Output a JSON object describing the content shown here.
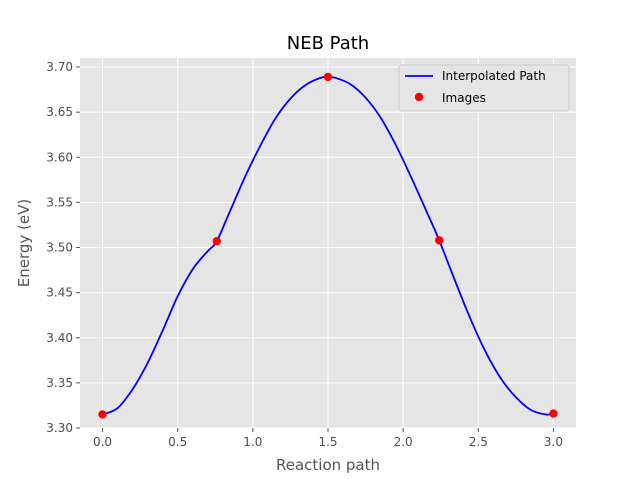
{
  "chart_data": {
    "type": "line",
    "title": "NEB Path",
    "xlabel": "Reaction path",
    "ylabel": "Energy (eV)",
    "xlim": [
      -0.15,
      3.15
    ],
    "ylim": [
      3.3,
      3.71
    ],
    "xticks": [
      0.0,
      0.5,
      1.0,
      1.5,
      2.0,
      2.5,
      3.0
    ],
    "xtick_labels": [
      "0.0",
      "0.5",
      "1.0",
      "1.5",
      "2.0",
      "2.5",
      "3.0"
    ],
    "yticks": [
      3.3,
      3.35,
      3.4,
      3.45,
      3.5,
      3.55,
      3.6,
      3.65,
      3.7
    ],
    "ytick_labels": [
      "3.30",
      "3.35",
      "3.40",
      "3.45",
      "3.50",
      "3.55",
      "3.60",
      "3.65",
      "3.70"
    ],
    "grid": true,
    "legend_position": "top-right",
    "series": [
      {
        "name": "Interpolated Path",
        "kind": "line",
        "color": "#0000ff",
        "x": [
          0.0,
          0.1,
          0.2,
          0.3,
          0.4,
          0.5,
          0.6,
          0.7,
          0.76,
          0.85,
          0.95,
          1.05,
          1.15,
          1.25,
          1.35,
          1.45,
          1.5,
          1.55,
          1.65,
          1.75,
          1.85,
          1.95,
          2.05,
          2.15,
          2.24,
          2.35,
          2.45,
          2.55,
          2.65,
          2.75,
          2.85,
          2.95,
          3.0
        ],
        "y": [
          3.315,
          3.322,
          3.343,
          3.372,
          3.408,
          3.446,
          3.476,
          3.496,
          3.507,
          3.541,
          3.579,
          3.613,
          3.643,
          3.665,
          3.68,
          3.688,
          3.689,
          3.688,
          3.681,
          3.666,
          3.644,
          3.614,
          3.579,
          3.542,
          3.508,
          3.461,
          3.42,
          3.384,
          3.355,
          3.334,
          3.32,
          3.315,
          3.316
        ]
      },
      {
        "name": "Images",
        "kind": "scatter",
        "color": "#ff0000",
        "x": [
          0.0,
          0.76,
          1.5,
          2.24,
          3.0
        ],
        "y": [
          3.315,
          3.507,
          3.689,
          3.508,
          3.316
        ]
      }
    ]
  },
  "colors": {
    "plot_bg": "#e5e5e5",
    "grid": "#ffffff",
    "line": "#0000ff",
    "marker": "#ff0000"
  }
}
